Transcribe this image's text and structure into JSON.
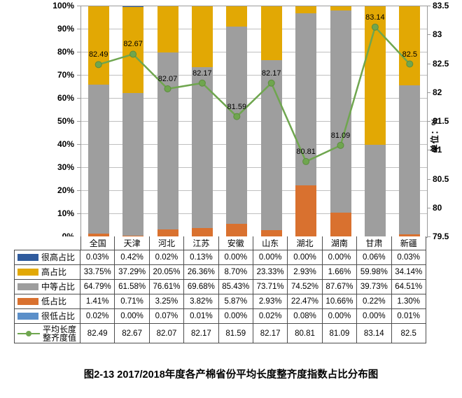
{
  "chart_data": {
    "type": "bar",
    "subtype": "stacked-bar-with-line-overlay",
    "title": "图2-13 2017/2018年度各产棉省份平均长度整齐度指数占比分布图",
    "categories": [
      "全国",
      "天津",
      "河北",
      "江苏",
      "安徽",
      "山东",
      "湖北",
      "湖南",
      "甘肃",
      "新疆"
    ],
    "series": [
      {
        "name": "很高占比",
        "kind": "bar",
        "color": "#2F5B9D",
        "values": [
          0.03,
          0.42,
          0.02,
          0.13,
          0.0,
          0.0,
          0.0,
          0.0,
          0.06,
          0.03
        ],
        "labels": [
          "0.03%",
          "0.42%",
          "0.02%",
          "0.13%",
          "0.00%",
          "0.00%",
          "0.00%",
          "0.00%",
          "0.06%",
          "0.03%"
        ]
      },
      {
        "name": "高占比",
        "kind": "bar",
        "color": "#E2A804",
        "values": [
          33.75,
          37.29,
          20.05,
          26.36,
          8.7,
          23.33,
          2.93,
          1.66,
          59.98,
          34.14
        ],
        "labels": [
          "33.75%",
          "37.29%",
          "20.05%",
          "26.36%",
          "8.70%",
          "23.33%",
          "2.93%",
          "1.66%",
          "59.98%",
          "34.14%"
        ]
      },
      {
        "name": "中等占比",
        "kind": "bar",
        "color": "#9E9E9E",
        "values": [
          64.79,
          61.58,
          76.61,
          69.68,
          85.43,
          73.71,
          74.52,
          87.67,
          39.73,
          64.51
        ],
        "labels": [
          "64.79%",
          "61.58%",
          "76.61%",
          "69.68%",
          "85.43%",
          "73.71%",
          "74.52%",
          "87.67%",
          "39.73%",
          "64.51%"
        ]
      },
      {
        "name": "低占比",
        "kind": "bar",
        "color": "#D9712F",
        "values": [
          1.41,
          0.71,
          3.25,
          3.82,
          5.87,
          2.93,
          22.47,
          10.66,
          0.22,
          1.3
        ],
        "labels": [
          "1.41%",
          "0.71%",
          "3.25%",
          "3.82%",
          "5.87%",
          "2.93%",
          "22.47%",
          "10.66%",
          "0.22%",
          "1.30%"
        ]
      },
      {
        "name": "很低占比",
        "kind": "bar",
        "color": "#5B8FC9",
        "values": [
          0.02,
          0.0,
          0.07,
          0.01,
          0.0,
          0.02,
          0.08,
          0.0,
          0.0,
          0.01
        ],
        "labels": [
          "0.02%",
          "0.00%",
          "0.07%",
          "0.01%",
          "0.00%",
          "0.02%",
          "0.08%",
          "0.00%",
          "0.00%",
          "0.01%"
        ]
      },
      {
        "name": "平均长度整齐度值",
        "name_lines": [
          "平均长度",
          "整齐度值"
        ],
        "kind": "line",
        "color": "#6FA64F",
        "values": [
          82.49,
          82.67,
          82.07,
          82.17,
          81.59,
          82.17,
          80.81,
          81.09,
          83.14,
          82.5
        ],
        "labels": [
          "82.49",
          "82.67",
          "82.07",
          "82.17",
          "81.59",
          "82.17",
          "80.81",
          "81.09",
          "83.14",
          "82.5"
        ]
      }
    ],
    "stack_order_bottom_to_top": [
      "很低占比",
      "低占比",
      "中等占比",
      "高占比",
      "很高占比"
    ],
    "left_axis": {
      "min": 0,
      "max": 100,
      "step": 10,
      "ticks": [
        "0%",
        "10%",
        "20%",
        "30%",
        "40%",
        "50%",
        "60%",
        "70%",
        "80%",
        "90%",
        "100%"
      ]
    },
    "right_axis": {
      "min": 79.5,
      "max": 83.5,
      "step": 0.5,
      "ticks": [
        "79.5",
        "80",
        "80.5",
        "81",
        "81.5",
        "82",
        "82.5",
        "83",
        "83.5"
      ],
      "label": "单位：%"
    },
    "grid": "horizontal",
    "legend_position": "table-left",
    "colors": {
      "gridline": "#BFBFBF",
      "axis_border": "#9A9A9A",
      "table_border": "#4D4D4D",
      "very_high": "#2F5B9D",
      "high": "#E2A804",
      "mid": "#9E9E9E",
      "low": "#D9712F",
      "very_low": "#5B8FC9",
      "line": "#6FA64F"
    }
  }
}
